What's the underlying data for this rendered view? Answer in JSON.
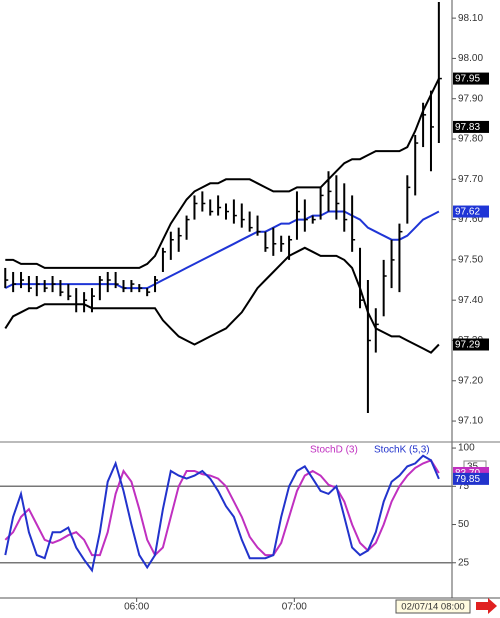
{
  "chart_data": [
    {
      "type": "ohlc",
      "x": [
        310,
        313,
        316,
        319,
        322,
        325,
        328,
        331,
        334,
        337,
        340,
        343,
        346,
        349,
        352,
        355,
        358,
        361,
        364,
        367,
        370,
        373,
        376,
        379,
        382,
        385,
        388,
        391,
        394,
        397,
        400,
        403,
        406,
        409,
        412,
        415,
        418,
        421,
        424,
        427,
        430,
        433,
        436,
        439,
        442,
        445,
        448,
        451,
        454,
        457,
        460,
        463,
        466,
        469,
        472,
        475
      ],
      "high": [
        97.48,
        97.47,
        97.47,
        97.46,
        97.46,
        97.45,
        97.46,
        97.45,
        97.44,
        97.43,
        97.42,
        97.43,
        97.46,
        97.47,
        97.47,
        97.45,
        97.45,
        97.44,
        97.43,
        97.46,
        97.53,
        97.57,
        97.58,
        97.61,
        97.66,
        97.67,
        97.65,
        97.66,
        97.64,
        97.65,
        97.64,
        97.62,
        97.61,
        97.57,
        97.58,
        97.56,
        97.56,
        97.67,
        97.65,
        97.61,
        97.68,
        97.72,
        97.71,
        97.69,
        97.66,
        97.53,
        97.45,
        97.38,
        97.5,
        97.55,
        97.59,
        97.71,
        97.81,
        97.89,
        97.92,
        98.14
      ],
      "low": [
        97.43,
        97.42,
        97.43,
        97.42,
        97.41,
        97.42,
        97.42,
        97.41,
        97.4,
        97.37,
        97.37,
        97.37,
        97.4,
        97.42,
        97.43,
        97.42,
        97.42,
        97.42,
        97.41,
        97.42,
        97.47,
        97.5,
        97.52,
        97.55,
        97.6,
        97.62,
        97.61,
        97.61,
        97.6,
        97.59,
        97.58,
        97.57,
        97.56,
        97.52,
        97.51,
        97.52,
        97.5,
        97.55,
        97.57,
        97.59,
        97.6,
        97.62,
        97.6,
        97.57,
        97.52,
        97.38,
        97.12,
        97.27,
        97.36,
        97.43,
        97.42,
        97.59,
        97.66,
        97.78,
        97.72,
        97.79
      ],
      "close": [
        97.45,
        97.44,
        97.45,
        97.43,
        97.44,
        97.43,
        97.44,
        97.42,
        97.41,
        97.39,
        97.4,
        97.41,
        97.45,
        97.45,
        97.44,
        97.43,
        97.44,
        97.43,
        97.42,
        97.45,
        97.52,
        97.55,
        97.56,
        97.6,
        97.64,
        97.64,
        97.62,
        97.63,
        97.62,
        97.61,
        97.6,
        97.58,
        97.57,
        97.53,
        97.54,
        97.54,
        97.55,
        97.62,
        97.6,
        97.6,
        97.66,
        97.67,
        97.64,
        97.6,
        97.55,
        97.4,
        97.3,
        97.34,
        97.46,
        97.5,
        97.57,
        97.68,
        97.79,
        97.86,
        97.83,
        97.95
      ],
      "bands": {
        "upper": [
          97.5,
          97.5,
          97.49,
          97.49,
          97.49,
          97.48,
          97.48,
          97.48,
          97.48,
          97.48,
          97.48,
          97.48,
          97.48,
          97.48,
          97.48,
          97.48,
          97.48,
          97.48,
          97.49,
          97.51,
          97.55,
          97.59,
          97.62,
          97.65,
          97.67,
          97.68,
          97.69,
          97.69,
          97.7,
          97.7,
          97.7,
          97.7,
          97.69,
          97.68,
          97.67,
          97.67,
          97.67,
          97.68,
          97.68,
          97.68,
          97.68,
          97.7,
          97.72,
          97.74,
          97.75,
          97.75,
          97.76,
          97.77,
          97.77,
          97.77,
          97.77,
          97.78,
          97.82,
          97.87,
          97.91,
          97.95
        ],
        "middle": [
          97.43,
          97.44,
          97.44,
          97.44,
          97.44,
          97.44,
          97.44,
          97.44,
          97.44,
          97.44,
          97.44,
          97.44,
          97.44,
          97.44,
          97.44,
          97.43,
          97.43,
          97.43,
          97.43,
          97.44,
          97.45,
          97.46,
          97.47,
          97.48,
          97.49,
          97.5,
          97.51,
          97.52,
          97.53,
          97.54,
          97.55,
          97.56,
          97.57,
          97.57,
          97.58,
          97.59,
          97.59,
          97.6,
          97.6,
          97.61,
          97.61,
          97.62,
          97.62,
          97.62,
          97.61,
          97.6,
          97.58,
          97.57,
          97.56,
          97.55,
          97.55,
          97.56,
          97.58,
          97.6,
          97.61,
          97.62
        ],
        "lower": [
          97.33,
          97.36,
          97.37,
          97.38,
          97.38,
          97.39,
          97.39,
          97.39,
          97.39,
          97.39,
          97.39,
          97.38,
          97.38,
          97.38,
          97.38,
          97.38,
          97.38,
          97.38,
          97.38,
          97.38,
          97.35,
          97.33,
          97.31,
          97.3,
          97.29,
          97.3,
          97.31,
          97.32,
          97.33,
          97.35,
          97.37,
          97.4,
          97.43,
          97.45,
          97.47,
          97.49,
          97.51,
          97.52,
          97.53,
          97.52,
          97.51,
          97.51,
          97.51,
          97.5,
          97.48,
          97.43,
          97.37,
          97.33,
          97.32,
          97.31,
          97.31,
          97.3,
          97.29,
          97.28,
          97.27,
          97.29
        ]
      },
      "colors": {
        "bars": "#000000",
        "upper": "#000000",
        "middle": "#1f35d6",
        "lower": "#000000"
      },
      "xlim": [
        308,
        480
      ],
      "xticks": [
        {
          "value": 360,
          "label": "06:00"
        },
        {
          "value": 420,
          "label": "07:00"
        }
      ],
      "ylim": [
        97.053,
        98.145
      ],
      "yticks": [
        {
          "value": 97.1,
          "label": "97.10"
        },
        {
          "value": 97.2,
          "label": "97.20"
        },
        {
          "value": 97.3,
          "label": "97.30"
        },
        {
          "value": 97.4,
          "label": "97.40"
        },
        {
          "value": 97.5,
          "label": "97.50"
        },
        {
          "value": 97.6,
          "label": "97.60"
        },
        {
          "value": 97.7,
          "label": "97.70"
        },
        {
          "value": 97.8,
          "label": "97.80"
        },
        {
          "value": 97.9,
          "label": "97.90"
        },
        {
          "value": 98,
          "label": "98.00"
        },
        {
          "value": 98.1,
          "label": "98.10"
        }
      ],
      "markers": [
        {
          "value": 97.95,
          "color": "#000000"
        },
        {
          "value": 97.83,
          "color": "#000000"
        },
        {
          "value": 97.62,
          "color": "#1f35d6"
        },
        {
          "value": 97.29,
          "color": "#000000"
        }
      ],
      "cursor_label": "02/07/14 08:00"
    },
    {
      "type": "line",
      "series": [
        {
          "name": "StochD (3)",
          "color": "#c030c0",
          "values": [
            40,
            45,
            55,
            60,
            50,
            40,
            38,
            40,
            43,
            45,
            40,
            30,
            30,
            45,
            70,
            85,
            78,
            60,
            40,
            30,
            35,
            55,
            75,
            85,
            85,
            83,
            82,
            80,
            75,
            65,
            55,
            42,
            35,
            30,
            30,
            38,
            55,
            72,
            82,
            85,
            82,
            76,
            74,
            65,
            50,
            38,
            33,
            38,
            50,
            65,
            75,
            82,
            87,
            90,
            92,
            83.7
          ]
        },
        {
          "name": "StochK (5,3)",
          "color": "#2233cc",
          "values": [
            30,
            55,
            70,
            45,
            30,
            28,
            45,
            45,
            48,
            35,
            27,
            20,
            45,
            78,
            90,
            72,
            50,
            30,
            22,
            30,
            60,
            85,
            82,
            80,
            82,
            85,
            80,
            72,
            62,
            55,
            40,
            28,
            28,
            28,
            30,
            55,
            75,
            85,
            88,
            80,
            72,
            70,
            75,
            55,
            35,
            30,
            33,
            45,
            65,
            78,
            82,
            88,
            90,
            95,
            92,
            79.85
          ]
        }
      ],
      "ylim": [
        0,
        102
      ],
      "yticks": [
        25,
        50,
        75,
        100
      ],
      "reference_lines": [
        25,
        75
      ],
      "markers": [
        {
          "value": 83.7,
          "label": "83.70",
          "color": "#c030c0"
        },
        {
          "value": 79.85,
          "color": "#2233cc"
        }
      ],
      "period_box": "35"
    }
  ]
}
